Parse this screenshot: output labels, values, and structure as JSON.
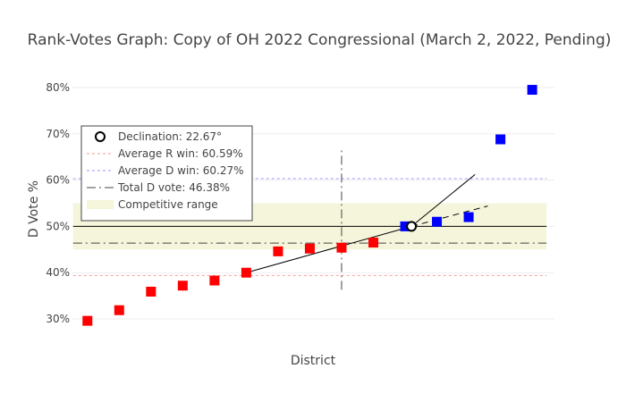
{
  "chart_data": {
    "type": "scatter",
    "title": "Rank-Votes Graph: Copy of OH 2022 Congressional (March 2, 2022, Pending)",
    "xlabel": "District",
    "ylabel": "D Vote %",
    "xlim": [
      0.5,
      15.7
    ],
    "ylim": [
      27.5,
      82.5
    ],
    "y_ticks": [
      30,
      40,
      50,
      60,
      70,
      80
    ],
    "y_tick_labels": [
      "30%",
      "40%",
      "50%",
      "60%",
      "70%",
      "80%"
    ],
    "grid": "horizontal",
    "legend_position": "top-left",
    "r_seats": {
      "color": "#ff0000",
      "x": [
        1,
        2,
        3,
        4,
        5,
        6,
        7,
        8,
        9,
        10
      ],
      "values": [
        29.6,
        31.9,
        35.9,
        37.2,
        38.3,
        40.0,
        44.6,
        45.2,
        45.4,
        46.5
      ]
    },
    "d_seats": {
      "color": "#0000ff",
      "x": [
        11,
        12,
        13,
        14,
        15
      ],
      "values": [
        50.0,
        51.0,
        52.0,
        68.8,
        79.5
      ]
    },
    "declination_point": {
      "x": 11.2,
      "y": 50.0
    },
    "r_line": [
      [
        6,
        40.0
      ],
      [
        11.2,
        50.0
      ]
    ],
    "d_line": [
      [
        11.2,
        50.0
      ],
      [
        13.2,
        61.2
      ]
    ],
    "d_line_dashed": [
      [
        11.2,
        50.0
      ],
      [
        13.6,
        54.4
      ]
    ],
    "half_line": [
      [
        9.0,
        36.3
      ],
      [
        9.0,
        66.5
      ]
    ],
    "fifty_line": 50,
    "competitive_range": [
      45,
      55
    ],
    "average_r_win": 39.4,
    "average_d_win": 60.3,
    "total_d_vote": 46.38,
    "legend": [
      {
        "key": "declination",
        "label": "Declination: 22.67°"
      },
      {
        "key": "avg_r",
        "label": "Average R win: 60.59%"
      },
      {
        "key": "avg_d",
        "label": "Average D win: 60.27%"
      },
      {
        "key": "total_d",
        "label": "Total D vote: 46.38%"
      },
      {
        "key": "competitive",
        "label": "Competitive range"
      }
    ]
  }
}
